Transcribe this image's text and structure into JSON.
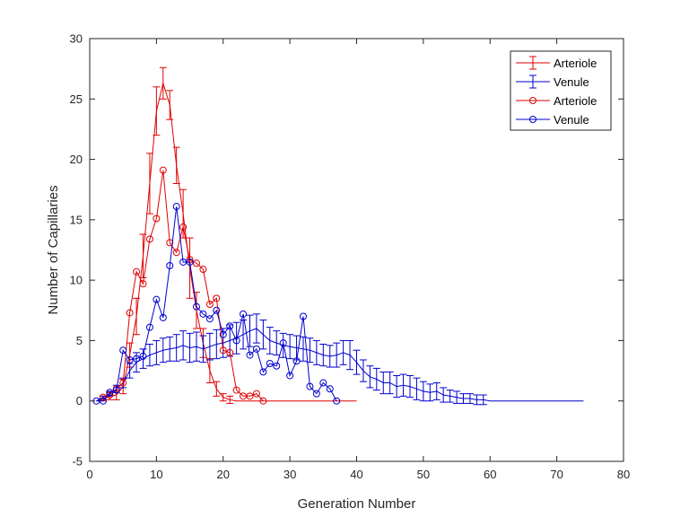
{
  "chart_data": {
    "type": "line",
    "title": "",
    "xlabel": "Generation Number",
    "ylabel": "Number of Capillaries",
    "xlim": [
      0,
      80
    ],
    "ylim": [
      -5,
      30
    ],
    "xticks": [
      0,
      10,
      20,
      30,
      40,
      50,
      60,
      70,
      80
    ],
    "yticks": [
      -5,
      0,
      5,
      10,
      15,
      20,
      25,
      30
    ],
    "grid": false,
    "legend_position": "top-right",
    "colors": {
      "arteriole": "#e00000",
      "venule": "#0000d0"
    },
    "series": [
      {
        "name": "Arteriole",
        "style": "errorbar",
        "color": "#e00000",
        "x": [
          1,
          2,
          3,
          4,
          5,
          6,
          7,
          8,
          9,
          10,
          11,
          12,
          13,
          14,
          15,
          16,
          17,
          18,
          19,
          20,
          21,
          22,
          23,
          24,
          25,
          26,
          27,
          28,
          29,
          30,
          31,
          32,
          33,
          34,
          35,
          36,
          37,
          38,
          39,
          40
        ],
        "y": [
          0,
          0.2,
          0.4,
          0.5,
          1.2,
          3.8,
          7.0,
          12.0,
          18.0,
          24.0,
          26.3,
          24.5,
          19.5,
          15.5,
          11.0,
          7.5,
          4.8,
          2.5,
          1.0,
          0.3,
          0.1,
          0,
          0,
          0,
          0,
          0,
          0,
          0,
          0,
          0,
          0,
          0,
          0,
          0,
          0,
          0,
          0,
          0,
          0,
          0
        ],
        "err": [
          0,
          0.2,
          0.3,
          0.4,
          0.6,
          1.0,
          1.5,
          1.8,
          2.5,
          2.0,
          1.3,
          1.2,
          1.5,
          2.0,
          2.5,
          1.5,
          1.2,
          1.0,
          0.6,
          0.3,
          0.3,
          0,
          0,
          0,
          0,
          0,
          0,
          0,
          0,
          0,
          0,
          0,
          0,
          0,
          0,
          0,
          0,
          0,
          0,
          0
        ]
      },
      {
        "name": "Venule",
        "style": "errorbar",
        "color": "#0000d0",
        "x": [
          1,
          2,
          3,
          4,
          5,
          6,
          7,
          8,
          9,
          10,
          11,
          12,
          13,
          14,
          15,
          16,
          17,
          18,
          19,
          20,
          21,
          22,
          23,
          24,
          25,
          26,
          27,
          28,
          29,
          30,
          31,
          32,
          33,
          34,
          35,
          36,
          37,
          38,
          39,
          40,
          41,
          42,
          43,
          44,
          45,
          46,
          47,
          48,
          49,
          50,
          51,
          52,
          53,
          54,
          55,
          56,
          57,
          58,
          59,
          60,
          61,
          62,
          63,
          64,
          65,
          66,
          67,
          68,
          69,
          70,
          71,
          72,
          73,
          74
        ],
        "y": [
          0,
          0.3,
          0.6,
          1.0,
          1.5,
          2.5,
          3.2,
          3.5,
          3.8,
          4.0,
          4.2,
          4.3,
          4.4,
          4.6,
          4.4,
          4.5,
          4.3,
          4.5,
          4.7,
          4.8,
          5.0,
          5.2,
          5.5,
          5.8,
          6.0,
          5.5,
          5.0,
          4.8,
          4.6,
          4.5,
          4.4,
          4.3,
          4.2,
          4.0,
          3.8,
          3.7,
          3.8,
          4.0,
          3.8,
          3.2,
          2.5,
          2.0,
          1.8,
          1.5,
          1.5,
          1.2,
          1.3,
          1.2,
          1.0,
          0.8,
          0.7,
          0.8,
          0.5,
          0.4,
          0.3,
          0.2,
          0.2,
          0.1,
          0.1,
          0,
          0,
          0,
          0,
          0,
          0,
          0,
          0,
          0,
          0,
          0,
          0,
          0,
          0,
          0
        ],
        "err": [
          0,
          0.1,
          0.2,
          0.3,
          0.4,
          0.6,
          0.8,
          0.8,
          0.9,
          1.0,
          1.0,
          1.0,
          1.1,
          1.2,
          1.2,
          1.2,
          1.1,
          1.1,
          1.2,
          1.2,
          1.3,
          1.3,
          1.2,
          1.3,
          1.2,
          1.2,
          1.1,
          1.0,
          1.0,
          1.0,
          1.0,
          1.0,
          1.0,
          1.0,
          0.9,
          0.9,
          1.0,
          1.0,
          1.2,
          1.0,
          0.9,
          0.9,
          0.9,
          0.9,
          0.9,
          0.9,
          0.9,
          0.9,
          0.9,
          0.8,
          0.7,
          0.7,
          0.6,
          0.5,
          0.5,
          0.4,
          0.4,
          0.4,
          0.4,
          0,
          0,
          0,
          0,
          0,
          0,
          0,
          0,
          0,
          0,
          0,
          0,
          0,
          0,
          0
        ]
      },
      {
        "name": "Arteriole",
        "style": "marker",
        "color": "#e00000",
        "x": [
          2,
          3,
          4,
          5,
          6,
          7,
          8,
          9,
          10,
          11,
          12,
          13,
          14,
          15,
          16,
          17,
          18,
          19,
          20,
          21,
          22,
          23,
          24,
          25,
          26
        ],
        "y": [
          0.3,
          0.5,
          1.0,
          1.5,
          7.3,
          10.7,
          9.7,
          13.4,
          15.1,
          19.1,
          13.1,
          12.3,
          14.4,
          11.7,
          11.4,
          10.9,
          8.0,
          8.5,
          4.2,
          4.0,
          0.9,
          0.4,
          0.4,
          0.6,
          0.0
        ]
      },
      {
        "name": "Venule",
        "style": "marker",
        "color": "#0000d0",
        "x": [
          1,
          2,
          3,
          4,
          5,
          6,
          7,
          8,
          9,
          10,
          11,
          12,
          13,
          14,
          15,
          16,
          17,
          18,
          19,
          20,
          21,
          22,
          23,
          24,
          25,
          26,
          27,
          28,
          29,
          30,
          31,
          32,
          33,
          34,
          35,
          36,
          37
        ],
        "y": [
          0.0,
          0.0,
          0.7,
          0.9,
          4.2,
          3.4,
          3.5,
          3.7,
          6.1,
          8.4,
          6.9,
          11.2,
          16.1,
          11.5,
          11.5,
          7.8,
          7.2,
          6.8,
          7.5,
          5.5,
          6.2,
          5.0,
          7.2,
          3.8,
          4.3,
          2.4,
          3.1,
          2.9,
          4.8,
          2.1,
          3.3,
          7.0,
          1.2,
          0.6,
          1.5,
          1.0,
          0.0
        ]
      }
    ]
  }
}
